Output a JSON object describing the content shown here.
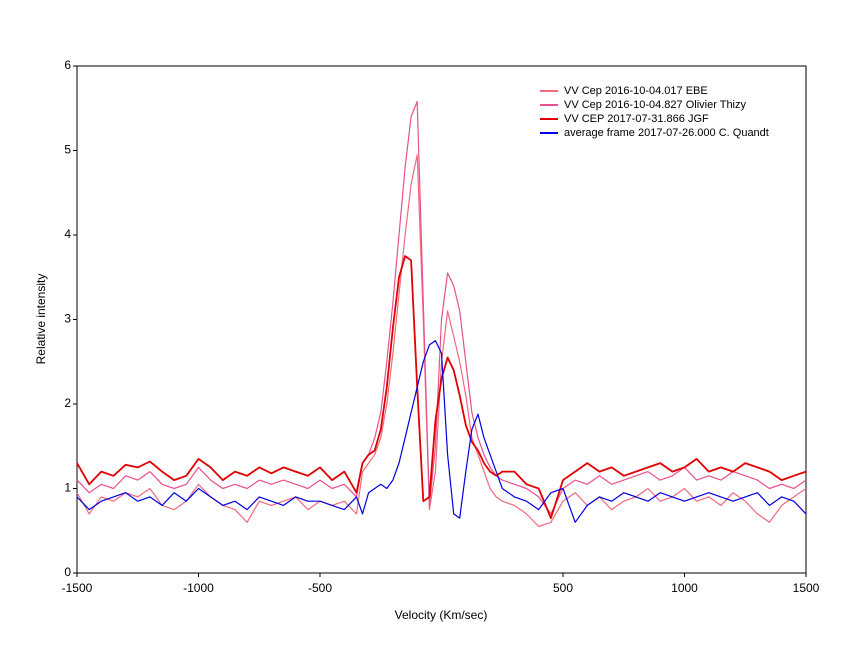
{
  "chart_data": {
    "type": "line",
    "x_label": "Velocity (Km/sec)",
    "y_label": "Relative intensity",
    "x": [
      -1500,
      -1450,
      -1400,
      -1350,
      -1300,
      -1250,
      -1200,
      -1150,
      -1100,
      -1050,
      -1000,
      -950,
      -900,
      -850,
      -800,
      -750,
      -700,
      -650,
      -600,
      -550,
      -500,
      -450,
      -400,
      -350,
      -325,
      -300,
      -275,
      -250,
      -225,
      -200,
      -175,
      -150,
      -125,
      -100,
      -75,
      -50,
      -25,
      0,
      25,
      50,
      75,
      100,
      125,
      150,
      175,
      200,
      225,
      250,
      300,
      350,
      400,
      450,
      500,
      550,
      600,
      650,
      700,
      750,
      800,
      850,
      900,
      950,
      1000,
      1050,
      1100,
      1150,
      1200,
      1250,
      1300,
      1350,
      1400,
      1450,
      1500
    ],
    "series": [
      {
        "name": "VV Cep  2016-10-04.017  EBE",
        "color": "#f06a7c",
        "values": [
          0.95,
          0.7,
          0.9,
          0.85,
          0.95,
          0.9,
          1.0,
          0.8,
          0.75,
          0.85,
          1.05,
          0.9,
          0.8,
          0.75,
          0.6,
          0.85,
          0.8,
          0.85,
          0.9,
          0.75,
          0.85,
          0.8,
          0.85,
          0.7,
          1.2,
          1.3,
          1.4,
          1.6,
          2.0,
          2.6,
          3.3,
          4.0,
          4.6,
          4.95,
          3.0,
          0.75,
          1.2,
          2.5,
          3.1,
          2.8,
          2.5,
          2.1,
          1.6,
          1.4,
          1.2,
          1.0,
          0.9,
          0.85,
          0.8,
          0.7,
          0.55,
          0.6,
          0.85,
          0.95,
          0.8,
          0.9,
          0.75,
          0.85,
          0.9,
          1.0,
          0.85,
          0.9,
          1.0,
          0.85,
          0.9,
          0.8,
          0.95,
          0.85,
          0.7,
          0.6,
          0.8,
          0.9,
          1.0
        ]
      },
      {
        "name": "VV Cep  2016-10-04.827  Olivier Thizy",
        "color": "#e8508e",
        "values": [
          1.1,
          0.95,
          1.05,
          1.0,
          1.15,
          1.1,
          1.2,
          1.05,
          1.0,
          1.05,
          1.25,
          1.1,
          1.0,
          1.05,
          1.0,
          1.1,
          1.05,
          1.1,
          1.05,
          1.0,
          1.1,
          1.0,
          1.05,
          0.9,
          1.3,
          1.4,
          1.6,
          1.9,
          2.5,
          3.2,
          4.0,
          4.8,
          5.4,
          5.58,
          3.2,
          0.8,
          1.5,
          3.0,
          3.55,
          3.4,
          3.1,
          2.5,
          1.9,
          1.6,
          1.4,
          1.25,
          1.15,
          1.1,
          1.05,
          1.0,
          0.9,
          0.7,
          1.0,
          1.1,
          1.05,
          1.15,
          1.05,
          1.1,
          1.15,
          1.2,
          1.1,
          1.15,
          1.25,
          1.1,
          1.15,
          1.1,
          1.2,
          1.15,
          1.1,
          1.0,
          1.05,
          1.0,
          1.1
        ]
      },
      {
        "name": "VV CEP  2017-07-31.866  JGF",
        "color": "#e00000",
        "values": [
          1.3,
          1.05,
          1.2,
          1.15,
          1.28,
          1.25,
          1.32,
          1.2,
          1.1,
          1.15,
          1.35,
          1.25,
          1.1,
          1.2,
          1.15,
          1.25,
          1.18,
          1.25,
          1.2,
          1.15,
          1.25,
          1.1,
          1.2,
          0.95,
          1.3,
          1.4,
          1.45,
          1.7,
          2.2,
          2.9,
          3.5,
          3.75,
          3.7,
          2.2,
          0.85,
          0.9,
          1.8,
          2.3,
          2.55,
          2.4,
          2.1,
          1.75,
          1.55,
          1.45,
          1.3,
          1.2,
          1.15,
          1.2,
          1.2,
          1.05,
          1.0,
          0.65,
          1.1,
          1.2,
          1.3,
          1.2,
          1.25,
          1.15,
          1.2,
          1.25,
          1.3,
          1.2,
          1.25,
          1.35,
          1.2,
          1.25,
          1.2,
          1.3,
          1.25,
          1.2,
          1.1,
          1.15,
          1.2
        ]
      },
      {
        "name": "average frame  2017-07-26.000  C. Quandt",
        "color": "#0000e0",
        "values": [
          0.9,
          0.75,
          0.85,
          0.9,
          0.95,
          0.85,
          0.9,
          0.8,
          0.95,
          0.85,
          1.0,
          0.9,
          0.8,
          0.85,
          0.75,
          0.9,
          0.85,
          0.8,
          0.9,
          0.85,
          0.85,
          0.8,
          0.75,
          0.9,
          0.7,
          0.95,
          1.0,
          1.05,
          1.0,
          1.1,
          1.3,
          1.6,
          1.9,
          2.2,
          2.5,
          2.7,
          2.75,
          2.6,
          1.4,
          0.7,
          0.65,
          1.2,
          1.7,
          1.88,
          1.6,
          1.4,
          1.2,
          1.0,
          0.9,
          0.85,
          0.75,
          0.95,
          1.0,
          0.6,
          0.8,
          0.9,
          0.85,
          0.95,
          0.9,
          0.85,
          0.95,
          0.9,
          0.85,
          0.9,
          0.95,
          0.9,
          0.85,
          0.9,
          0.95,
          0.8,
          0.9,
          0.85,
          0.7
        ]
      }
    ],
    "xlim": [
      -1500,
      1500
    ],
    "xticks": [
      -1500,
      -1000,
      -500,
      500,
      1000,
      1500
    ],
    "ylim": [
      0,
      6
    ],
    "yticks": [
      0,
      1,
      2,
      3,
      4,
      5,
      6
    ],
    "grid": false,
    "legend": "top-right"
  }
}
